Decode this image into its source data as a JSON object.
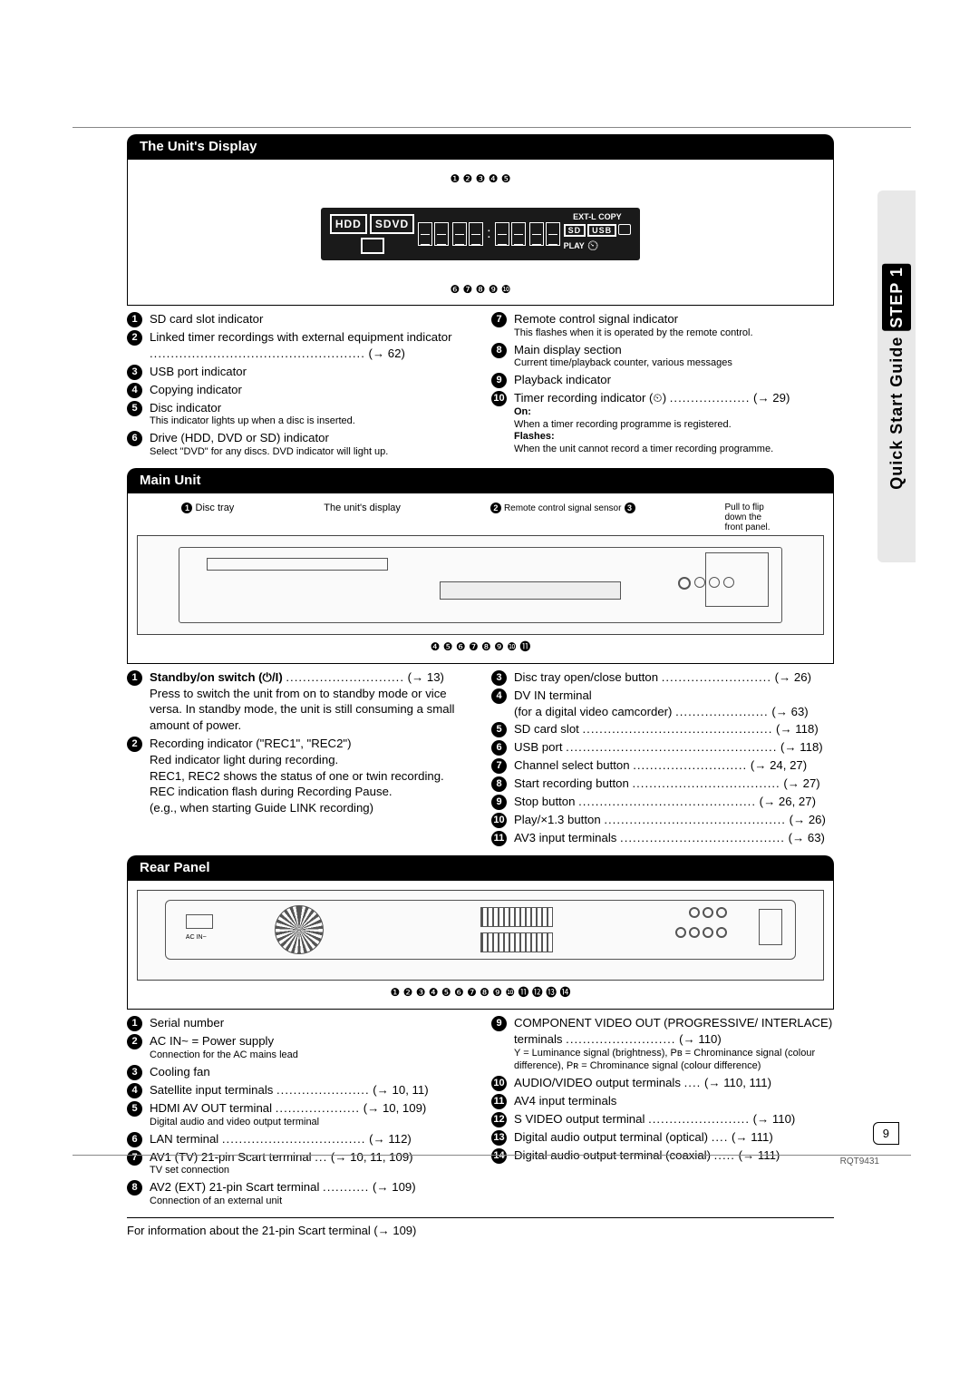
{
  "page": {
    "number": "9",
    "doc_id": "RQT9431"
  },
  "side_tab": {
    "prefix": "Quick Start Guide",
    "step": "STEP 1"
  },
  "section1": {
    "title": "The Unit's Display",
    "display_labels": {
      "hdd": "HDD",
      "sdvd": "SDVD",
      "extl": "EXT-L",
      "copy": "COPY",
      "sd": "SD",
      "usb": "USB",
      "play": "PLAY"
    },
    "top_numbers": "❶ ❷   ❸ ❹ ❺",
    "bottom_numbers": "❻ ❼                 ❽                       ❾   ❿",
    "left": [
      {
        "n": "1",
        "text": "SD card slot indicator"
      },
      {
        "n": "2",
        "text": "Linked timer recordings with external equipment indicator",
        "leader": "...................................................",
        "ref": "(→ 62)"
      },
      {
        "n": "3",
        "text": "USB port indicator"
      },
      {
        "n": "4",
        "text": "Copying indicator"
      },
      {
        "n": "5",
        "text": "Disc indicator",
        "note": "This indicator lights up when a disc is inserted."
      },
      {
        "n": "6",
        "text": "Drive (HDD, DVD or SD) indicator",
        "note": "Select \"DVD\" for any discs. DVD indicator will light up."
      }
    ],
    "right": [
      {
        "n": "7",
        "text": "Remote control signal indicator",
        "note": "This flashes when it is operated by the remote control."
      },
      {
        "n": "8",
        "text": "Main display section",
        "note": "Current time/playback counter, various messages"
      },
      {
        "n": "9",
        "text": "Playback indicator"
      },
      {
        "n": "10",
        "text": "Timer recording indicator (⏲)",
        "leader": "...................",
        "ref": "(→ 29)",
        "extra": [
          {
            "bold": "On:",
            "t": "When a timer recording programme is registered."
          },
          {
            "bold": "Flashes:",
            "t": "When the unit cannot record a timer recording programme."
          }
        ]
      }
    ]
  },
  "section2": {
    "title": "Main Unit",
    "labels": {
      "disc_tray": "Disc tray",
      "unit_display": "The unit's display",
      "remote": "Remote control signal sensor",
      "flip": "Pull to flip down the front panel."
    },
    "bottom_numbers": "❹ ❺    ❻    ❼  ❽ ❾ ❿           ⓫",
    "left": [
      {
        "n": "1",
        "bold": "Standby/on switch (⏻/I)",
        "leader": "............................",
        "ref": "(→ 13)",
        "body": "Press to switch the unit from on to standby mode or vice versa. In standby mode, the unit is still consuming a small amount of power."
      },
      {
        "n": "2",
        "text": "Recording indicator (\"REC1\", \"REC2\")",
        "lines": [
          "Red indicator light during recording.",
          "REC1, REC2 shows the status of one or twin recording.",
          "REC indication flash during Recording Pause.",
          "(e.g., when starting Guide LINK recording)"
        ]
      }
    ],
    "right": [
      {
        "n": "3",
        "text": "Disc tray open/close button",
        "leader": "..........................",
        "ref": "(→ 26)"
      },
      {
        "n": "4",
        "text": "DV IN terminal",
        "sub": "(for a digital video camcorder)",
        "subleader": "......................",
        "subref": "(→ 63)"
      },
      {
        "n": "5",
        "text": "SD card slot",
        "leader": ".............................................",
        "ref": "(→ 118)"
      },
      {
        "n": "6",
        "text": "USB port",
        "leader": "..................................................",
        "ref": "(→ 118)"
      },
      {
        "n": "7",
        "text": "Channel select button",
        "leader": "...........................",
        "ref": "(→ 24, 27)"
      },
      {
        "n": "8",
        "text": "Start recording button",
        "leader": "...................................",
        "ref": "(→ 27)"
      },
      {
        "n": "9",
        "text": "Stop button",
        "leader": "..........................................",
        "ref": "(→ 26, 27)"
      },
      {
        "n": "10",
        "text": "Play/×1.3 button",
        "leader": "...........................................",
        "ref": "(→ 26)"
      },
      {
        "n": "11",
        "text": "AV3 input terminals",
        "leader": ".......................................",
        "ref": "(→ 63)"
      }
    ]
  },
  "section3": {
    "title": "Rear Panel",
    "bottom_numbers": "❶    ❷            ❸                  ❹    ❺   ❻            ❼   ❽ ❾ ❿         ⓫      ⓬ ⓭  ⓮",
    "left": [
      {
        "n": "1",
        "text": "Serial number"
      },
      {
        "n": "2",
        "text": "AC IN~ = Power supply",
        "note": "Connection for the AC mains lead"
      },
      {
        "n": "3",
        "text": "Cooling fan"
      },
      {
        "n": "4",
        "text": "Satellite input terminals",
        "leader": "......................",
        "ref": "(→ 10, 11)"
      },
      {
        "n": "5",
        "text": "HDMI AV OUT terminal",
        "leader": "....................",
        "ref": "(→ 10, 109)",
        "note": "Digital audio and video output terminal"
      },
      {
        "n": "6",
        "text": "LAN terminal",
        "leader": "..................................",
        "ref": "(→ 112)"
      },
      {
        "n": "7",
        "text": "AV1 (TV) 21-pin Scart terminal",
        "leader": "...",
        "ref": "(→ 10, 11, 109)",
        "note": "TV set connection"
      },
      {
        "n": "8",
        "text": "AV2 (EXT) 21-pin Scart terminal",
        "leader": "...........",
        "ref": "(→ 109)",
        "note": "Connection of an external unit"
      }
    ],
    "right": [
      {
        "n": "9",
        "text": "COMPONENT VIDEO OUT (PROGRESSIVE/ INTERLACE) terminals",
        "leader": "..........................",
        "ref": "(→ 110)",
        "note": "Y = Luminance signal (brightness), Pʙ = Chrominance signal (colour difference), Pʀ = Chrominance signal (colour difference)"
      },
      {
        "n": "10",
        "text": "AUDIO/VIDEO output terminals",
        "leader": "....",
        "ref": "(→ 110, 111)"
      },
      {
        "n": "11",
        "text": "AV4 input terminals"
      },
      {
        "n": "12",
        "text": "S VIDEO output terminal",
        "leader": "........................",
        "ref": "(→ 110)"
      },
      {
        "n": "13",
        "text": "Digital audio output terminal (optical)",
        "leader": "....",
        "ref": "(→ 111)"
      },
      {
        "n": "14",
        "text": "Digital audio output terminal (coaxial)",
        "leader": ".....",
        "ref": "(→ 111)"
      }
    ],
    "footer": "For information about the 21-pin Scart terminal (→ 109)"
  }
}
